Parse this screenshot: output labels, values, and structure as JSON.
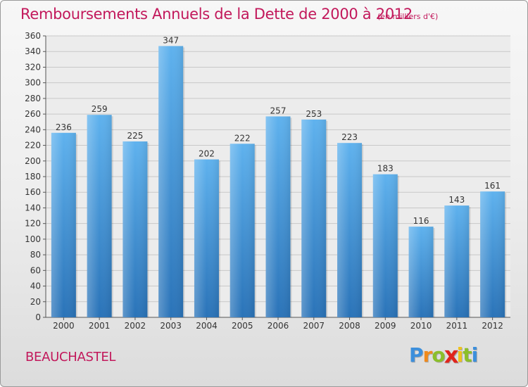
{
  "title": "Remboursements Annuels de la Dette de 2000 à 2012",
  "subtitle": "(en milliers d'€)",
  "commune": "BEAUCHASTEL",
  "brand": {
    "letters": [
      "P",
      "r",
      "o",
      "x",
      "i",
      "t",
      "i"
    ],
    "colors": [
      "#3c8fdc",
      "#f08a1c",
      "#8bbf2a",
      "#e0241c",
      "#f0c21c",
      "#8bbf2a",
      "#3c8fdc"
    ]
  },
  "colors": {
    "bar_top": "#5fb2ee",
    "bar_bottom": "#2a73b8",
    "title": "#c2185b"
  },
  "chart_data": {
    "type": "bar",
    "title": "Remboursements Annuels de la Dette de 2000 à 2012",
    "subtitle": "(en milliers d'€)",
    "categories": [
      "2000",
      "2001",
      "2002",
      "2003",
      "2004",
      "2005",
      "2006",
      "2007",
      "2008",
      "2009",
      "2010",
      "2011",
      "2012"
    ],
    "values": [
      236,
      259,
      225,
      347,
      202,
      222,
      257,
      253,
      223,
      183,
      116,
      143,
      161
    ],
    "ylim": [
      0,
      360
    ],
    "yticks": [
      0,
      20,
      40,
      60,
      80,
      100,
      120,
      140,
      160,
      180,
      200,
      220,
      240,
      260,
      280,
      300,
      320,
      340,
      360
    ],
    "grid": true,
    "xlabel": "",
    "ylabel": ""
  }
}
